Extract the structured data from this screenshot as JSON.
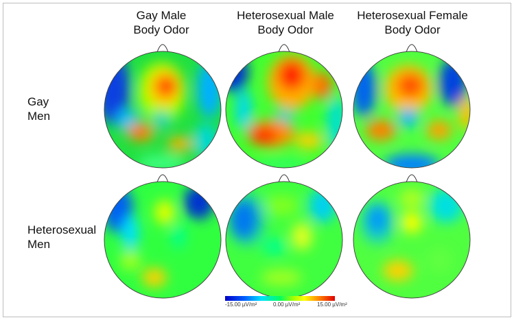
{
  "columns": [
    {
      "line1": "Gay Male",
      "line2": "Body Odor"
    },
    {
      "line1": "Heterosexual Male",
      "line2": "Body Odor"
    },
    {
      "line1": "Heterosexual Female",
      "line2": "Body Odor"
    }
  ],
  "rows": [
    {
      "line1": "Gay",
      "line2": "Men"
    },
    {
      "line1": "Heterosexual",
      "line2": "Men"
    }
  ],
  "colorbar": {
    "min_label": "-15.00 µV/m²",
    "mid_label": "0.00 µV/m²",
    "max_label": "15.00 µV/m²",
    "min_value": -15,
    "max_value": 15,
    "colors": [
      "#0000ff",
      "#00c8ff",
      "#00ff80",
      "#40ff00",
      "#ffff00",
      "#ff8000",
      "#ff0000",
      "#e00000"
    ]
  }
}
